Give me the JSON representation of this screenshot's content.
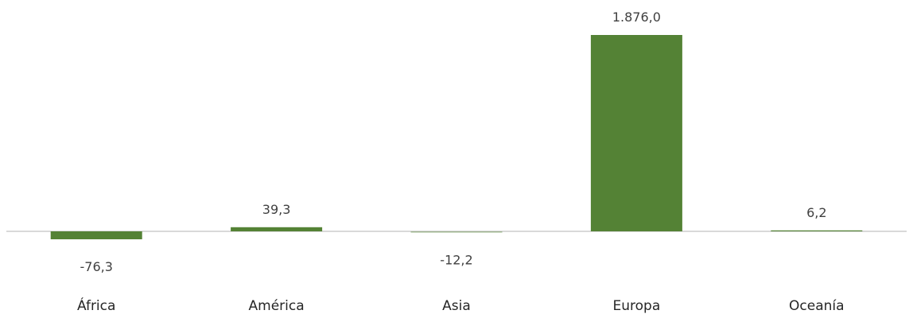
{
  "chart_data": {
    "type": "bar",
    "categories": [
      "África",
      "América",
      "Asia",
      "Europa",
      "Oceanía"
    ],
    "values": [
      -76.3,
      39.3,
      -12.2,
      1876.0,
      6.2
    ],
    "data_labels": [
      "-76,3",
      "39,3",
      "-12,2",
      "1.876,0",
      "6,2"
    ],
    "title": "",
    "xlabel": "",
    "ylabel": "",
    "ylim": [
      -76.3,
      1876.0
    ],
    "grid": false,
    "legend": "none",
    "bar_color": "#548235",
    "baseline_color": "#d9d9d9"
  }
}
